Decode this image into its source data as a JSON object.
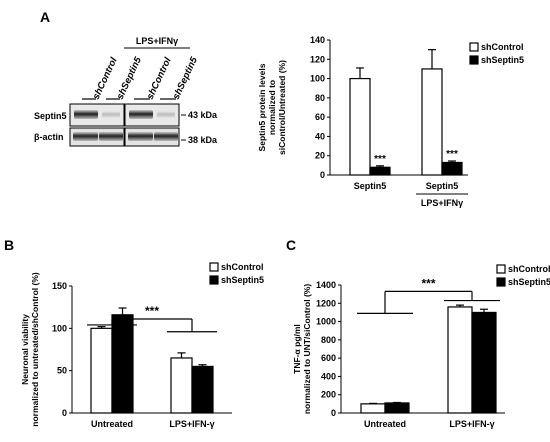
{
  "panels": [
    {
      "letter": "A",
      "blot": {
        "group_label": "LPS+IFNγ",
        "lanes": [
          "shControl",
          "shSeptin5",
          "shControl",
          "shSeptin5"
        ],
        "rows": [
          {
            "protein": "Septin5",
            "marker": "43 kDa"
          },
          {
            "protein": "β-actin",
            "marker": "38 kDa"
          }
        ]
      }
    },
    {
      "letter": "B"
    },
    {
      "letter": "C"
    }
  ],
  "chart_data": [
    {
      "type": "bar",
      "panel": "A",
      "categories": [
        "Septin5",
        "Septin5"
      ],
      "group_labels": [
        "",
        "LPS+IFNγ"
      ],
      "series": [
        {
          "name": "shControl",
          "values": [
            100,
            110
          ],
          "errors": [
            11,
            20
          ],
          "color": "#ffffff"
        },
        {
          "name": "shSeptin5",
          "values": [
            8,
            13
          ],
          "errors": [
            1.5,
            1.5
          ],
          "color": "#000000"
        }
      ],
      "significance": [
        "***",
        "***"
      ],
      "ylabel": "Septin5 protein levels normalized to siControl/Untreated (%)",
      "ylim": [
        0,
        140
      ],
      "yticks": [
        0,
        20,
        40,
        60,
        80,
        100,
        120,
        140
      ],
      "grid": false,
      "legend": "top-right"
    },
    {
      "type": "bar",
      "panel": "B",
      "categories": [
        "Untreated",
        "LPS+IFN-γ"
      ],
      "series": [
        {
          "name": "shControl",
          "values": [
            100,
            65
          ],
          "errors": [
            2,
            6
          ],
          "color": "#ffffff"
        },
        {
          "name": "shSeptin5",
          "values": [
            116,
            55
          ],
          "errors": [
            8,
            2
          ],
          "color": "#000000"
        }
      ],
      "comparison": "***",
      "ylabel": "Neuronal viability normalized to untreated/shControl (%)",
      "ylim": [
        0,
        150
      ],
      "yticks": [
        0,
        50,
        100,
        150
      ],
      "grid": false,
      "legend": "top-right"
    },
    {
      "type": "bar",
      "panel": "C",
      "categories": [
        "Untreated",
        "LPS+IFN-γ"
      ],
      "series": [
        {
          "name": "shControl",
          "values": [
            100,
            1160
          ],
          "errors": [
            5,
            20
          ],
          "color": "#ffffff"
        },
        {
          "name": "shSeptin5",
          "values": [
            110,
            1100
          ],
          "errors": [
            5,
            35
          ],
          "color": "#000000"
        }
      ],
      "comparison": "***",
      "ylabel": "TNF-α pg/ml normalized to UNT/siControl (%)",
      "ylim": [
        0,
        1400
      ],
      "yticks": [
        0,
        200,
        400,
        600,
        800,
        1000,
        1200,
        1400
      ],
      "grid": false,
      "legend": "top-right"
    }
  ]
}
